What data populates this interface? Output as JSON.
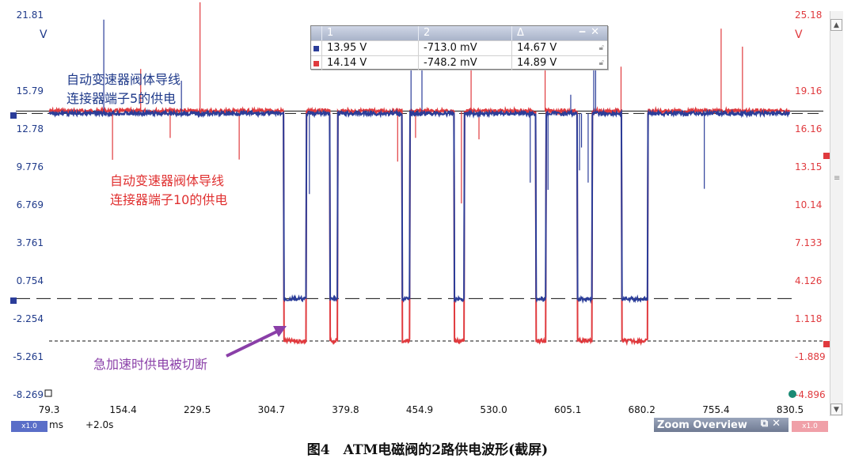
{
  "left_axis": {
    "unit": "V",
    "ticks": [
      "21.81",
      "15.79",
      "12.78",
      "9.776",
      "6.769",
      "3.761",
      "0.754",
      "-2.254",
      "-5.261",
      "-8.269"
    ],
    "values": [
      21.81,
      15.79,
      12.78,
      9.776,
      6.769,
      3.761,
      0.754,
      -2.254,
      -5.261,
      -8.269
    ]
  },
  "right_axis": {
    "unit": "V",
    "ticks": [
      "25.18",
      "19.16",
      "16.16",
      "13.15",
      "10.14",
      "7.133",
      "4.126",
      "1.118",
      "-1.889",
      "-4.896"
    ]
  },
  "x_axis": {
    "ticks": [
      "79.3",
      "154.4",
      "229.5",
      "304.7",
      "379.8",
      "454.9",
      "530.0",
      "605.1",
      "680.2",
      "755.4",
      "830.5"
    ],
    "values": [
      79.3,
      154.4,
      229.5,
      304.7,
      379.8,
      454.9,
      530.0,
      605.1,
      680.2,
      755.4,
      830.5
    ],
    "unit": "ms",
    "offset": "+2.0s",
    "zoom_badge": "x1.0"
  },
  "cursor_table": {
    "headers": [
      "1",
      "2",
      "Δ"
    ],
    "rows": [
      {
        "color": "#2b3d99",
        "c1": "13.95 V",
        "c2": "-713.0 mV",
        "delta": "14.67 V"
      },
      {
        "color": "#e03a3e",
        "c1": "14.14 V",
        "c2": "-748.2 mV",
        "delta": "14.89 V"
      }
    ]
  },
  "annotations": {
    "blue_label_line1": "自动变速器阀体导线",
    "blue_label_line2": "连接器端子5的供电",
    "red_label_line1": "自动变速器阀体导线",
    "red_label_line2": "连接器端子10的供电",
    "cutoff_label": "急加速时供电被切断"
  },
  "colors": {
    "blue_trace": "#2b3d99",
    "red_trace": "#e03a3e",
    "blue_label": "#1f3a8a",
    "red_label": "#e03030",
    "annotation": "#8a3fa8",
    "left_tick": "#1f3a8a",
    "right_tick": "#e03a3e"
  },
  "zoom_overview": {
    "title": "Zoom Overview"
  },
  "caption": "图4　ATM电磁阀的2路供电波形(截屏)",
  "chart_data": {
    "type": "line",
    "x_range_ms": [
      79.3,
      830.5
    ],
    "series": [
      {
        "trace": "blue",
        "high_v": 13.95,
        "low_v": -0.75,
        "cutoff_intervals_ms": [
          [
            317,
            340
          ],
          [
            364,
            372
          ],
          [
            437,
            445
          ],
          [
            490,
            500
          ],
          [
            573,
            583
          ],
          [
            615,
            630
          ],
          [
            660,
            686
          ]
        ]
      },
      {
        "trace": "red",
        "high_v": 14.14,
        "low_v": -0.75,
        "cutoff_intervals_ms": [
          [
            317,
            340
          ],
          [
            364,
            372
          ],
          [
            437,
            445
          ],
          [
            490,
            500
          ],
          [
            573,
            583
          ],
          [
            615,
            630
          ],
          [
            660,
            686
          ]
        ]
      }
    ],
    "markers_v": {
      "blue_level": 13.95,
      "red_level": 14.14,
      "blue_low": -0.713,
      "red_low": -0.748
    }
  }
}
